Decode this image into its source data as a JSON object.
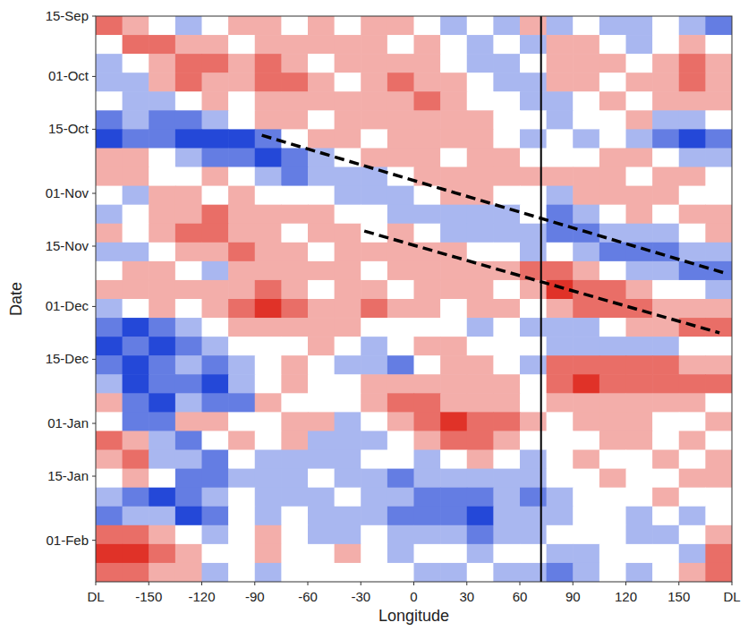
{
  "chart_data": {
    "type": "heatmap",
    "xlabel": "Longitude",
    "ylabel": "Date",
    "xlim": [
      -180,
      180
    ],
    "ylim": [
      0,
      150
    ],
    "xticks": [
      {
        "value": -180,
        "label": "DL"
      },
      -150,
      -120,
      -90,
      -60,
      -30,
      0,
      30,
      60,
      90,
      120,
      150,
      {
        "value": 180,
        "label": "DL"
      }
    ],
    "yticks": [
      {
        "value": 0,
        "label": "15-Sep"
      },
      {
        "value": 16,
        "label": "01-Oct"
      },
      {
        "value": 30,
        "label": "15-Oct"
      },
      {
        "value": 47,
        "label": "01-Nov"
      },
      {
        "value": 61,
        "label": "15-Nov"
      },
      {
        "value": 77,
        "label": "01-Dec"
      },
      {
        "value": 91,
        "label": "15-Dec"
      },
      {
        "value": 108,
        "label": "01-Jan"
      },
      {
        "value": 122,
        "label": "15-Jan"
      },
      {
        "value": 139,
        "label": "01-Feb"
      }
    ],
    "zlim": [
      -3,
      3
    ],
    "x": [
      -172.5,
      -157.5,
      -142.5,
      -127.5,
      -112.5,
      -97.5,
      -82.5,
      -67.5,
      -52.5,
      -37.5,
      -22.5,
      -7.5,
      7.5,
      22.5,
      37.5,
      52.5,
      67.5,
      82.5,
      97.5,
      112.5,
      127.5,
      142.5,
      157.5,
      172.5
    ],
    "y": [
      2.5,
      7.5,
      12.5,
      17.5,
      22.5,
      27.5,
      32.5,
      37.5,
      42.5,
      47.5,
      52.5,
      57.5,
      62.5,
      67.5,
      72.5,
      77.5,
      82.5,
      87.5,
      92.5,
      97.5,
      102.5,
      107.5,
      112.5,
      117.5,
      122.5,
      127.5,
      132.5,
      137.5,
      142.5,
      147.5
    ],
    "z": [
      [
        2,
        1,
        0,
        -1,
        0,
        1,
        1,
        0,
        1,
        0,
        1,
        1,
        0,
        -1,
        0,
        -1,
        1,
        -1,
        0,
        -1,
        -1,
        0,
        -1,
        -2
      ],
      [
        0,
        2,
        2,
        1,
        1,
        0,
        1,
        1,
        1,
        1,
        1,
        0,
        1,
        0,
        -1,
        0,
        -1,
        1,
        1,
        0,
        -1,
        0,
        1,
        0
      ],
      [
        -1,
        0,
        1,
        2,
        2,
        1,
        2,
        1,
        0,
        1,
        1,
        1,
        1,
        0,
        -1,
        -1,
        0,
        1,
        1,
        1,
        0,
        1,
        2,
        1
      ],
      [
        -1,
        -1,
        1,
        2,
        1,
        1,
        2,
        2,
        1,
        0,
        1,
        2,
        1,
        1,
        0,
        -1,
        -1,
        1,
        1,
        0,
        1,
        1,
        2,
        1
      ],
      [
        0,
        -1,
        -1,
        0,
        1,
        0,
        1,
        1,
        1,
        1,
        1,
        1,
        2,
        1,
        0,
        0,
        -1,
        -1,
        0,
        1,
        0,
        1,
        1,
        1
      ],
      [
        -2,
        -1,
        -2,
        -2,
        -1,
        0,
        1,
        1,
        0,
        1,
        1,
        1,
        1,
        1,
        1,
        0,
        0,
        -1,
        0,
        0,
        1,
        -1,
        -1,
        0
      ],
      [
        -3,
        -2,
        -2,
        -3,
        -3,
        -3,
        -2,
        0,
        1,
        1,
        0,
        1,
        1,
        1,
        1,
        0,
        -1,
        0,
        -1,
        0,
        -1,
        -2,
        -3,
        -2
      ],
      [
        1,
        1,
        0,
        -1,
        -2,
        -2,
        -3,
        -2,
        -1,
        0,
        1,
        1,
        1,
        0,
        1,
        1,
        0,
        0,
        0,
        1,
        1,
        0,
        -1,
        -1
      ],
      [
        1,
        1,
        0,
        0,
        1,
        0,
        -1,
        -2,
        -1,
        -1,
        -1,
        0,
        1,
        1,
        1,
        1,
        1,
        1,
        1,
        1,
        0,
        1,
        1,
        0
      ],
      [
        0,
        -1,
        1,
        1,
        0,
        1,
        0,
        0,
        0,
        -1,
        -1,
        -1,
        0,
        1,
        1,
        0,
        0,
        -1,
        1,
        1,
        1,
        1,
        0,
        0
      ],
      [
        -1,
        0,
        1,
        1,
        2,
        1,
        1,
        1,
        1,
        0,
        0,
        -1,
        -1,
        -1,
        -1,
        -1,
        0,
        -2,
        -1,
        0,
        1,
        0,
        1,
        1
      ],
      [
        1,
        0,
        1,
        2,
        2,
        1,
        1,
        0,
        1,
        1,
        0,
        1,
        0,
        -1,
        -1,
        -1,
        -1,
        -2,
        -2,
        -1,
        -1,
        -1,
        0,
        1
      ],
      [
        -1,
        -1,
        0,
        1,
        1,
        2,
        1,
        1,
        0,
        1,
        1,
        1,
        1,
        1,
        0,
        0,
        -1,
        0,
        -1,
        -2,
        -2,
        -2,
        -1,
        -1
      ],
      [
        0,
        1,
        1,
        0,
        -1,
        1,
        1,
        1,
        1,
        1,
        0,
        1,
        1,
        1,
        1,
        1,
        2,
        2,
        1,
        0,
        -1,
        -1,
        -2,
        -2
      ],
      [
        1,
        1,
        1,
        1,
        1,
        1,
        2,
        1,
        0,
        1,
        1,
        0,
        1,
        1,
        1,
        0,
        1,
        3,
        2,
        2,
        1,
        0,
        0,
        -1
      ],
      [
        -1,
        0,
        1,
        0,
        1,
        2,
        3,
        2,
        1,
        1,
        2,
        1,
        1,
        0,
        1,
        1,
        0,
        1,
        2,
        2,
        2,
        1,
        1,
        1
      ],
      [
        -2,
        -3,
        -2,
        -1,
        0,
        1,
        1,
        1,
        1,
        1,
        0,
        0,
        0,
        0,
        -1,
        0,
        -1,
        -1,
        -1,
        0,
        1,
        1,
        2,
        2
      ],
      [
        -3,
        -2,
        -3,
        -2,
        -1,
        0,
        0,
        0,
        1,
        0,
        -1,
        0,
        1,
        1,
        0,
        0,
        0,
        -1,
        -1,
        -1,
        -1,
        -1,
        0,
        0
      ],
      [
        -2,
        -3,
        -2,
        -1,
        -2,
        -1,
        0,
        1,
        0,
        -1,
        -1,
        -2,
        0,
        1,
        1,
        0,
        -1,
        2,
        2,
        2,
        2,
        2,
        1,
        1
      ],
      [
        -1,
        -3,
        -2,
        -2,
        -3,
        -1,
        0,
        1,
        0,
        0,
        1,
        1,
        1,
        1,
        1,
        1,
        0,
        2,
        3,
        2,
        2,
        2,
        2,
        2
      ],
      [
        1,
        -2,
        -3,
        -1,
        -2,
        -2,
        1,
        0,
        0,
        0,
        1,
        2,
        2,
        1,
        1,
        1,
        0,
        1,
        1,
        1,
        1,
        1,
        1,
        0
      ],
      [
        0,
        -2,
        -2,
        1,
        1,
        0,
        0,
        1,
        1,
        -1,
        0,
        1,
        2,
        3,
        2,
        2,
        1,
        0,
        1,
        1,
        1,
        0,
        0,
        1
      ],
      [
        2,
        1,
        -1,
        -2,
        0,
        1,
        0,
        1,
        -1,
        -1,
        -1,
        0,
        1,
        2,
        2,
        1,
        0,
        0,
        0,
        1,
        1,
        0,
        1,
        0
      ],
      [
        1,
        2,
        -1,
        -1,
        -2,
        0,
        -1,
        -1,
        -1,
        -1,
        0,
        0,
        -1,
        0,
        1,
        0,
        -1,
        0,
        1,
        0,
        0,
        1,
        0,
        1
      ],
      [
        0,
        1,
        0,
        -2,
        -2,
        -1,
        -1,
        -1,
        0,
        -1,
        -1,
        -2,
        -1,
        -1,
        -1,
        -1,
        -1,
        0,
        0,
        1,
        0,
        0,
        1,
        1
      ],
      [
        -1,
        -2,
        -3,
        -2,
        -1,
        0,
        -1,
        -1,
        -1,
        0,
        -1,
        -1,
        -2,
        -2,
        -2,
        -1,
        -2,
        -1,
        0,
        0,
        0,
        1,
        0,
        0
      ],
      [
        -2,
        -1,
        -1,
        -3,
        -2,
        0,
        -1,
        0,
        -1,
        -1,
        -1,
        -2,
        -2,
        -2,
        -3,
        -1,
        -1,
        -1,
        0,
        0,
        -1,
        0,
        -1,
        0
      ],
      [
        2,
        2,
        1,
        0,
        -1,
        0,
        1,
        0,
        -1,
        -1,
        0,
        -1,
        -1,
        -1,
        -2,
        -1,
        -1,
        0,
        0,
        0,
        -1,
        -1,
        0,
        1
      ],
      [
        3,
        3,
        2,
        1,
        0,
        0,
        1,
        0,
        0,
        1,
        0,
        -1,
        0,
        0,
        -1,
        0,
        0,
        -1,
        -1,
        0,
        0,
        0,
        -1,
        2
      ],
      [
        2,
        2,
        1,
        1,
        -1,
        0,
        -1,
        0,
        0,
        0,
        0,
        0,
        -1,
        -1,
        0,
        -1,
        -1,
        -2,
        -1,
        0,
        -1,
        0,
        1,
        2
      ]
    ],
    "vlines": [
      {
        "x": 72,
        "color": "#000000"
      }
    ],
    "lines": [
      {
        "x": [
          -86,
          175
        ],
        "y": [
          31.6,
          68
        ],
        "color": "#000000",
        "line_style": "dashed"
      },
      {
        "x": [
          -28,
          173
        ],
        "y": [
          57,
          84
        ],
        "color": "#000000",
        "line_style": "dashed"
      }
    ]
  }
}
